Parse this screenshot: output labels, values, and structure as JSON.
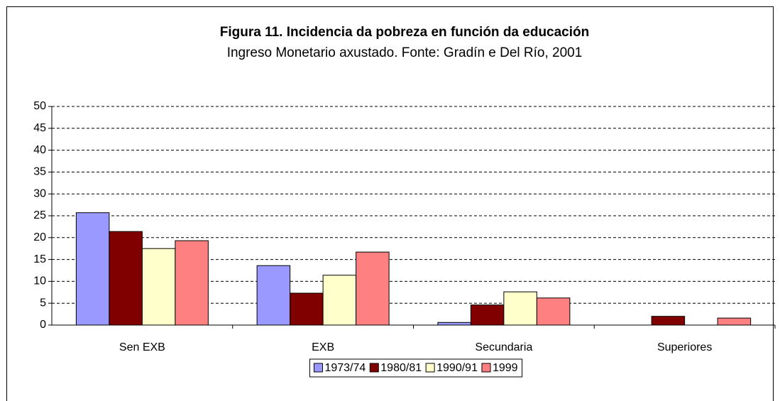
{
  "chart_data": {
    "type": "bar",
    "title": "Figura 11. Incidencia da pobreza en función da educación",
    "subtitle": "Ingreso Monetario axustado. Fonte: Gradín e Del Río, 2001",
    "categories": [
      "Sen EXB",
      "EXB",
      "Secundaria",
      "Superiores"
    ],
    "series": [
      {
        "name": "1973/74",
        "color": "#9999ff",
        "values": [
          25.7,
          13.6,
          0.6,
          null
        ]
      },
      {
        "name": "1980/81",
        "color": "#800000",
        "values": [
          21.4,
          7.3,
          4.6,
          2.0
        ]
      },
      {
        "name": "1990/91",
        "color": "#ffffcc",
        "values": [
          17.5,
          11.4,
          7.6,
          null
        ]
      },
      {
        "name": "1999",
        "color": "#ff8080",
        "values": [
          19.3,
          16.7,
          6.2,
          1.6
        ]
      }
    ],
    "ylim": [
      0,
      50
    ],
    "yticks": [
      0,
      5,
      10,
      15,
      20,
      25,
      30,
      35,
      40,
      45,
      50
    ],
    "grid": true,
    "legend": "bottom"
  }
}
